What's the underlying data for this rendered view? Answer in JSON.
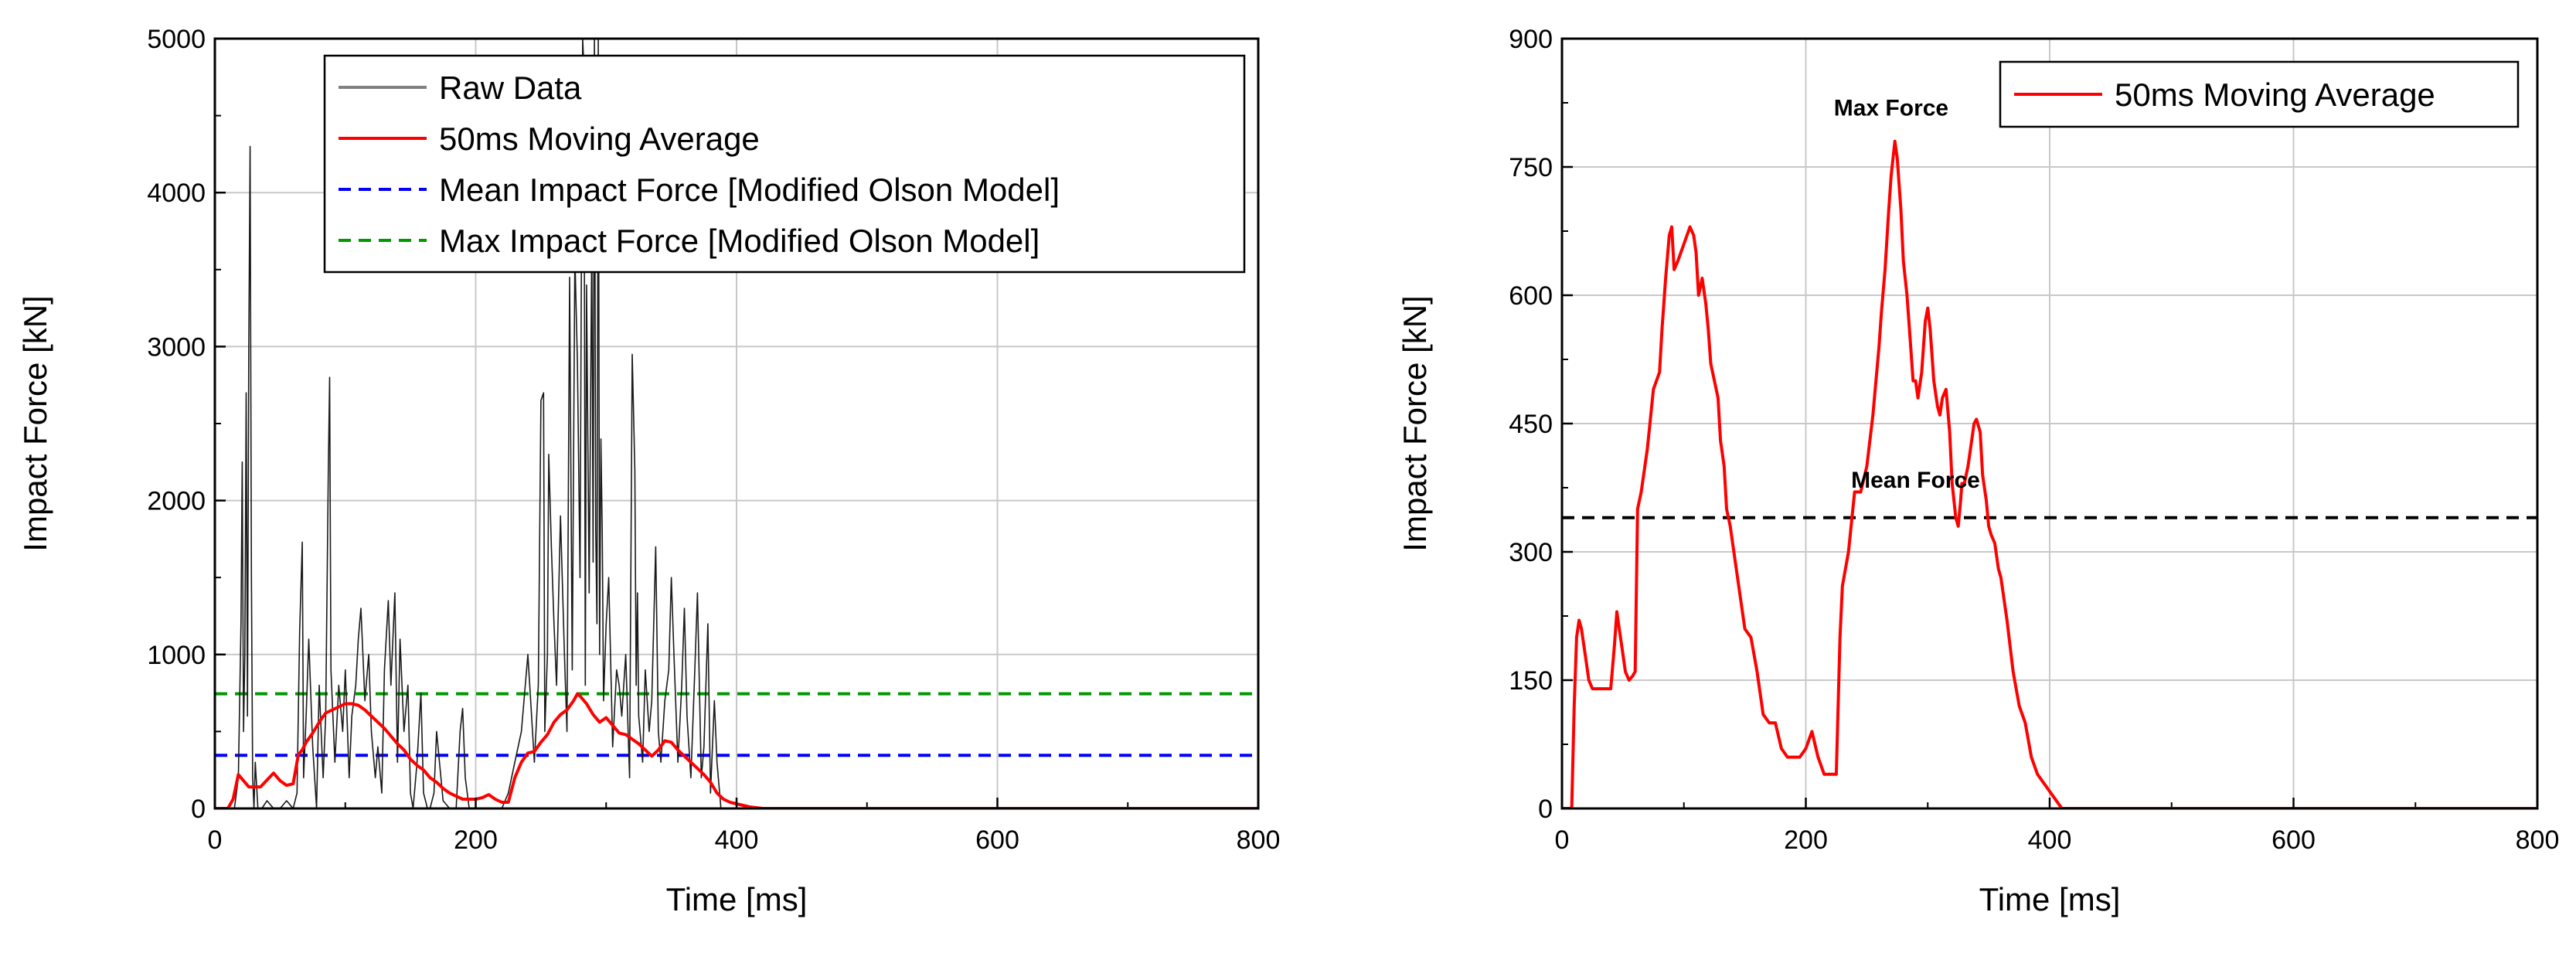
{
  "colors": {
    "raw": "#1a1a1a",
    "moving_average": "#ff0000",
    "mean_line_left": "#0000ff",
    "max_line_left": "#009900",
    "mean_line_right": "#000000",
    "grid": "#c8c8c8",
    "axis": "#000000"
  },
  "chart_data": [
    {
      "type": "line",
      "xlabel": "Time [ms]",
      "ylabel": "Impact Force [kN]",
      "xlim": [
        0,
        800
      ],
      "ylim": [
        0,
        5000
      ],
      "xticks": [
        "0",
        "200",
        "400",
        "600",
        "800"
      ],
      "yticks": [
        "0",
        "1000",
        "2000",
        "3000",
        "4000",
        "5000"
      ],
      "grid": true,
      "legend_position": "top-right",
      "legend": [
        "Raw Data",
        "50ms Moving Average",
        "Mean Impact Force [Modified Olson Model]",
        "Max Impact Force [Modified Olson Model]"
      ],
      "reference_lines": [
        {
          "name": "Mean Impact Force [Modified Olson Model]",
          "y": 345
        },
        {
          "name": "Max Impact Force [Modified Olson Model]",
          "y": 745
        }
      ],
      "series": [
        {
          "name": "Raw Data",
          "x": [
            15,
            18,
            20,
            21,
            22,
            23,
            24,
            25,
            26,
            27,
            28,
            29,
            30,
            31,
            33,
            36,
            40,
            45,
            50,
            55,
            60,
            63,
            65,
            67,
            68,
            70,
            72,
            75,
            78,
            80,
            83,
            85,
            87,
            88,
            89,
            90,
            92,
            95,
            98,
            100,
            103,
            105,
            108,
            110,
            112,
            115,
            118,
            120,
            123,
            125,
            128,
            130,
            133,
            135,
            138,
            140,
            142,
            145,
            148,
            150,
            152,
            155,
            158,
            160,
            163,
            165,
            168,
            170,
            175,
            180,
            185,
            188,
            190,
            192,
            195,
            200,
            205,
            210,
            215,
            220,
            225,
            230,
            235,
            240,
            245,
            248,
            250,
            252,
            253,
            255,
            256,
            258,
            260,
            262,
            265,
            268,
            270,
            272,
            274,
            276,
            278,
            280,
            281,
            282,
            283,
            284,
            285,
            287,
            289,
            290,
            291,
            292,
            293,
            294,
            295,
            296,
            297,
            298,
            300,
            302,
            305,
            308,
            310,
            312,
            315,
            318,
            320,
            322,
            323,
            324,
            325,
            328,
            330,
            333,
            335,
            338,
            340,
            342,
            345,
            348,
            350,
            352,
            355,
            358,
            360,
            362,
            365,
            368,
            370,
            373,
            375,
            378,
            380,
            383,
            385,
            388,
            390,
            395
          ],
          "values": [
            0,
            200,
            1200,
            2250,
            500,
            1000,
            2700,
            600,
            3000,
            4300,
            1500,
            200,
            0,
            300,
            0,
            0,
            50,
            0,
            0,
            50,
            0,
            100,
            1150,
            1730,
            200,
            600,
            1100,
            400,
            0,
            800,
            200,
            600,
            2200,
            2800,
            900,
            700,
            300,
            800,
            500,
            900,
            200,
            600,
            800,
            1100,
            1300,
            700,
            1000,
            500,
            200,
            400,
            100,
            900,
            1350,
            800,
            1400,
            300,
            1100,
            500,
            800,
            100,
            0,
            300,
            750,
            100,
            0,
            0,
            100,
            500,
            50,
            0,
            0,
            500,
            650,
            200,
            0,
            0,
            0,
            0,
            0,
            0,
            100,
            300,
            500,
            1000,
            300,
            800,
            2650,
            2700,
            500,
            1000,
            2300,
            1700,
            1200,
            800,
            1900,
            1000,
            500,
            3450,
            900,
            3600,
            2900,
            1500,
            3500,
            5000,
            4800,
            800,
            3400,
            1400,
            3700,
            1600,
            5000,
            1800,
            1200,
            5000,
            1000,
            2400,
            1800,
            700,
            1200,
            1500,
            400,
            900,
            800,
            600,
            1000,
            200,
            2950,
            2200,
            800,
            1400,
            600,
            300,
            900,
            500,
            700,
            1700,
            500,
            300,
            700,
            900,
            1500,
            1000,
            300,
            800,
            1300,
            600,
            200,
            900,
            1400,
            200,
            400,
            1200,
            100,
            700,
            300,
            0,
            0,
            0
          ]
        },
        {
          "name": "50ms Moving Average",
          "x": [
            0,
            10,
            14,
            18,
            22,
            26,
            30,
            35,
            45,
            50,
            55,
            60,
            64,
            67,
            70,
            75,
            80,
            85,
            90,
            95,
            100,
            105,
            110,
            115,
            120,
            125,
            130,
            135,
            140,
            145,
            150,
            155,
            160,
            165,
            170,
            175,
            180,
            185,
            190,
            195,
            200,
            205,
            210,
            215,
            220,
            225,
            230,
            235,
            240,
            245,
            250,
            255,
            260,
            265,
            270,
            275,
            278,
            280,
            285,
            290,
            295,
            300,
            305,
            310,
            315,
            320,
            325,
            330,
            335,
            340,
            345,
            350,
            355,
            360,
            365,
            370,
            375,
            380,
            385,
            390,
            395,
            400,
            405,
            410,
            420,
            800
          ],
          "values": [
            0,
            0,
            60,
            220,
            180,
            140,
            140,
            140,
            230,
            180,
            150,
            160,
            350,
            380,
            430,
            490,
            560,
            620,
            640,
            660,
            680,
            680,
            670,
            640,
            600,
            560,
            520,
            470,
            420,
            380,
            320,
            280,
            250,
            200,
            170,
            130,
            100,
            80,
            60,
            60,
            60,
            70,
            90,
            60,
            40,
            40,
            200,
            300,
            360,
            370,
            430,
            480,
            560,
            610,
            640,
            700,
            745,
            730,
            680,
            610,
            560,
            590,
            540,
            490,
            480,
            450,
            420,
            380,
            340,
            380,
            440,
            430,
            380,
            340,
            300,
            260,
            220,
            170,
            100,
            60,
            40,
            30,
            20,
            10,
            0,
            0
          ]
        }
      ]
    },
    {
      "type": "line",
      "xlabel": "Time [ms]",
      "ylabel": "Impact Force [kN]",
      "xlim": [
        0,
        800
      ],
      "ylim": [
        0,
        900
      ],
      "xticks": [
        "0",
        "200",
        "400",
        "600",
        "800"
      ],
      "yticks": [
        "0",
        "150",
        "300",
        "450",
        "600",
        "750",
        "900"
      ],
      "grid": true,
      "legend_position": "top-right",
      "legend": [
        "50ms Moving Average"
      ],
      "reference_lines": [
        {
          "name": "Mean Force",
          "y": 340
        }
      ],
      "annotations": [
        {
          "text": "Max Force",
          "x": 270,
          "y": 810
        },
        {
          "text": "Mean Force",
          "x": 290,
          "y": 375
        }
      ],
      "series": [
        {
          "name": "50ms Moving Average",
          "x": [
            0,
            8,
            10,
            12,
            14,
            16,
            18,
            20,
            22,
            25,
            30,
            35,
            40,
            43,
            45,
            47,
            50,
            52,
            55,
            58,
            60,
            62,
            65,
            70,
            75,
            80,
            82,
            85,
            88,
            90,
            92,
            95,
            100,
            105,
            108,
            110,
            112,
            115,
            118,
            120,
            122,
            125,
            128,
            130,
            133,
            135,
            138,
            140,
            145,
            150,
            155,
            160,
            165,
            170,
            175,
            180,
            185,
            190,
            195,
            200,
            205,
            210,
            215,
            220,
            225,
            228,
            230,
            235,
            240,
            245,
            250,
            255,
            260,
            262,
            265,
            268,
            270,
            273,
            275,
            278,
            280,
            283,
            285,
            288,
            290,
            292,
            295,
            298,
            300,
            302,
            305,
            308,
            310,
            312,
            315,
            318,
            320,
            323,
            325,
            327,
            328,
            330,
            333,
            335,
            338,
            340,
            343,
            345,
            348,
            350,
            352,
            355,
            358,
            360,
            365,
            370,
            375,
            380,
            385,
            390,
            395,
            400,
            405,
            410,
            420,
            800
          ],
          "values": [
            0,
            0,
            120,
            200,
            220,
            210,
            190,
            170,
            150,
            140,
            140,
            140,
            140,
            190,
            230,
            210,
            180,
            160,
            150,
            155,
            160,
            350,
            370,
            420,
            490,
            510,
            560,
            620,
            670,
            680,
            630,
            640,
            660,
            680,
            670,
            650,
            600,
            620,
            590,
            560,
            520,
            500,
            480,
            430,
            400,
            350,
            330,
            310,
            260,
            210,
            200,
            160,
            110,
            100,
            100,
            70,
            60,
            60,
            60,
            70,
            90,
            60,
            40,
            40,
            40,
            200,
            260,
            300,
            370,
            370,
            400,
            460,
            540,
            580,
            630,
            700,
            740,
            780,
            760,
            700,
            640,
            600,
            560,
            500,
            500,
            480,
            510,
            570,
            585,
            560,
            500,
            470,
            460,
            480,
            490,
            440,
            380,
            340,
            330,
            360,
            380,
            380,
            400,
            420,
            450,
            455,
            440,
            390,
            360,
            330,
            320,
            310,
            280,
            270,
            220,
            160,
            120,
            100,
            60,
            40,
            30,
            20,
            10,
            0,
            0,
            0
          ]
        }
      ]
    }
  ]
}
